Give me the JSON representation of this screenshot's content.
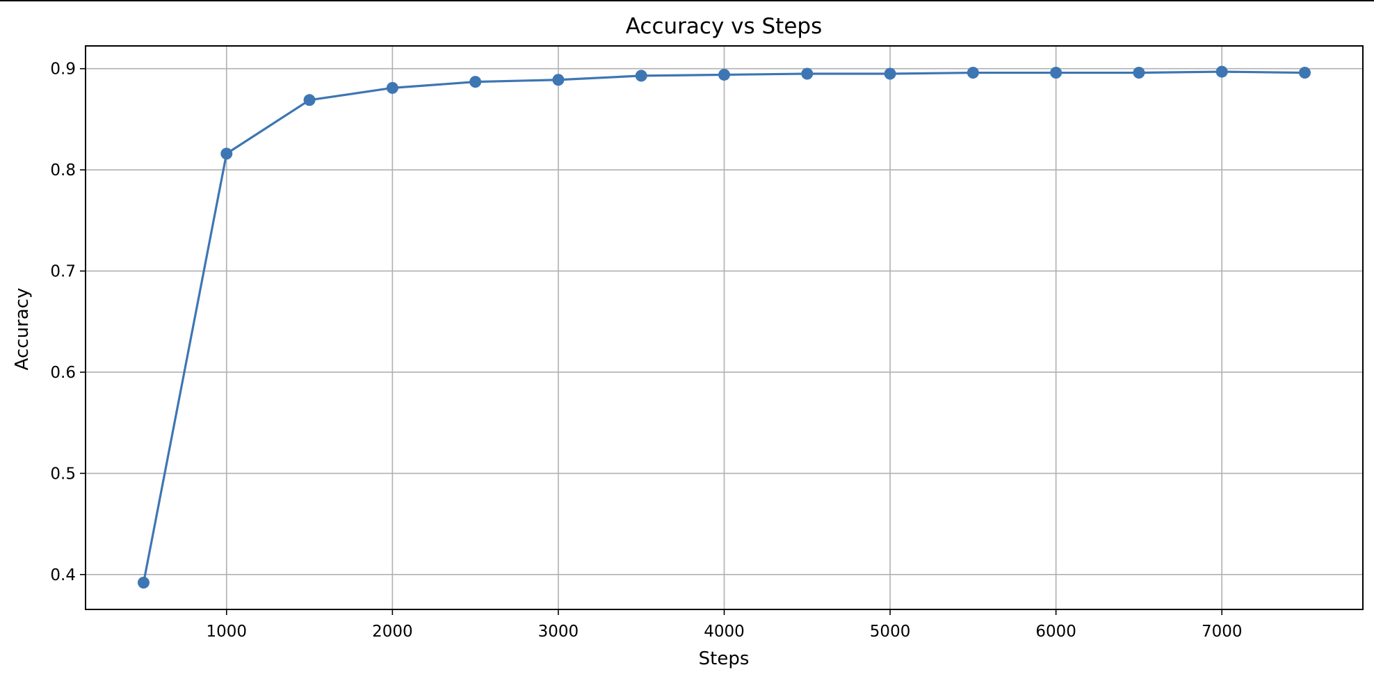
{
  "chart_data": {
    "type": "line",
    "title": "Accuracy vs Steps",
    "xlabel": "Steps",
    "ylabel": "Accuracy",
    "xlim": [
      150,
      7850
    ],
    "ylim": [
      0.3655,
      0.9225
    ],
    "xticks": [
      1000,
      2000,
      3000,
      4000,
      5000,
      6000,
      7000
    ],
    "xtick_labels": [
      "1000",
      "2000",
      "3000",
      "4000",
      "5000",
      "6000",
      "7000"
    ],
    "yticks": [
      0.4,
      0.5,
      0.6,
      0.7,
      0.8,
      0.9
    ],
    "ytick_labels": [
      "0.4",
      "0.5",
      "0.6",
      "0.7",
      "0.8",
      "0.9"
    ],
    "grid": true,
    "marker": "circle",
    "color": "#3d76b3",
    "series": [
      {
        "x": [
          500,
          1000,
          1500,
          2000,
          2500,
          3000,
          3500,
          4000,
          4500,
          5000,
          5500,
          6000,
          6500,
          7000,
          7500
        ],
        "y": [
          0.392,
          0.816,
          0.869,
          0.881,
          0.887,
          0.889,
          0.893,
          0.894,
          0.895,
          0.895,
          0.896,
          0.896,
          0.896,
          0.897,
          0.896
        ]
      }
    ]
  }
}
